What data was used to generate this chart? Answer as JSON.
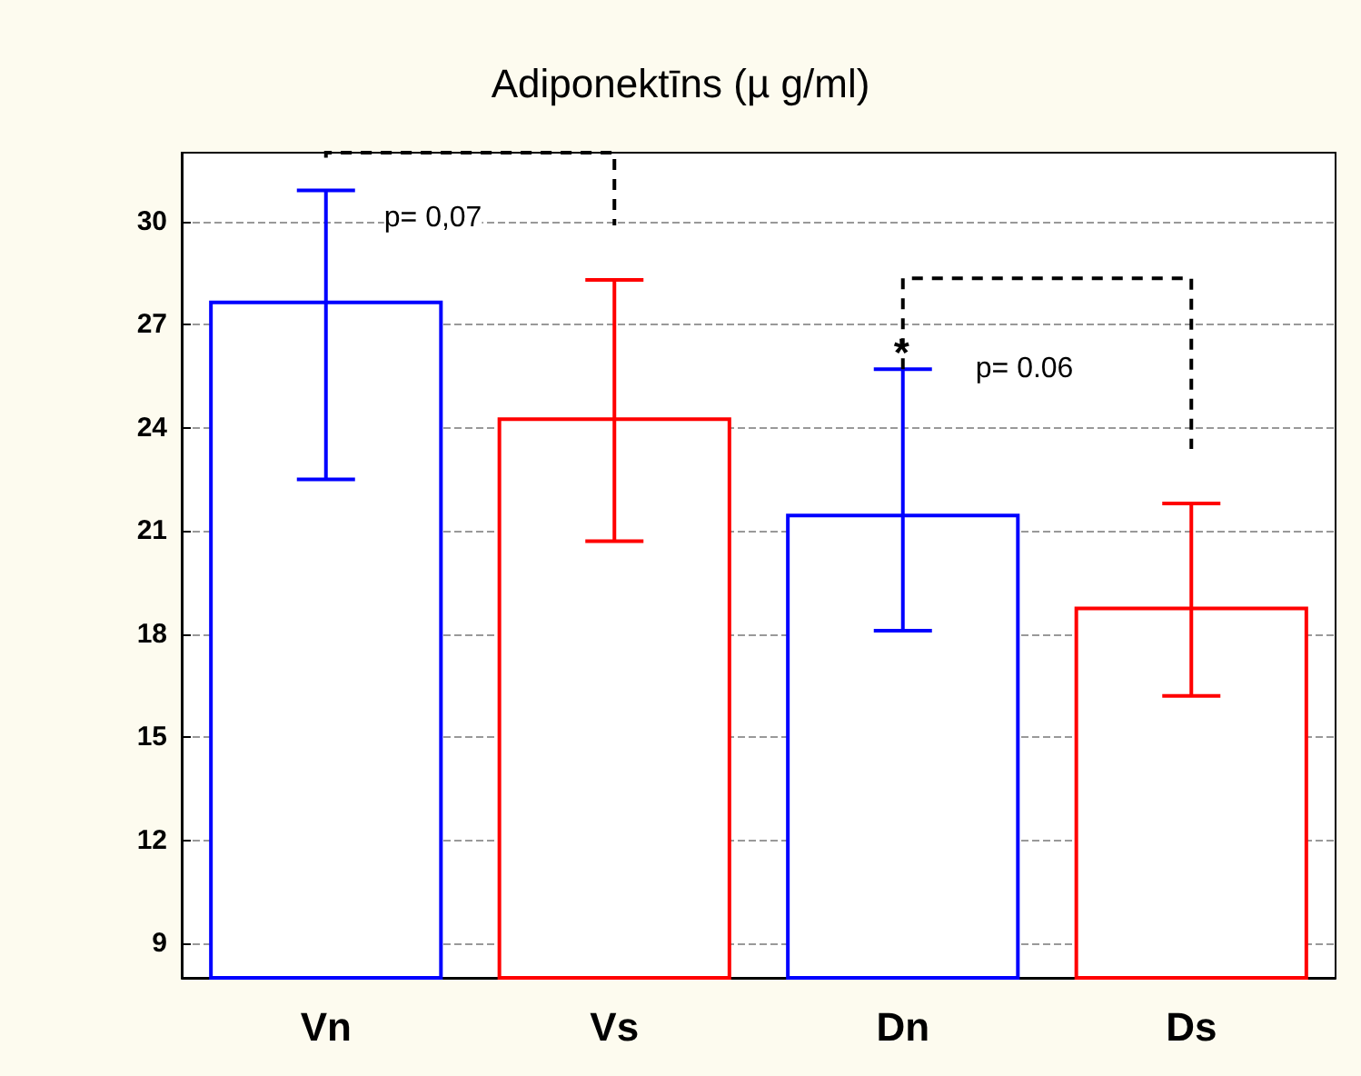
{
  "chart_data": {
    "type": "bar",
    "title": "Adiponektīns (µ g/ml)",
    "categories": [
      "Vn",
      "Vs",
      "Dn",
      "Ds"
    ],
    "values": [
      27.7,
      24.3,
      21.5,
      18.8
    ],
    "colors": [
      "#0000ff",
      "#ff0000",
      "#0000ff",
      "#ff0000"
    ],
    "errors": [
      [
        22.5,
        30.9
      ],
      [
        20.7,
        28.3
      ],
      [
        18.1,
        25.7
      ],
      [
        16.2,
        21.8
      ]
    ],
    "ylim": [
      8,
      32
    ],
    "yticks": [
      9,
      12,
      15,
      18,
      21,
      24,
      27,
      30
    ],
    "grid": "y",
    "annotations": [
      {
        "text": "p= 0,07",
        "x": "Vn",
        "y": 30.1
      },
      "*",
      {
        "text": "p= 0.06",
        "x": "Dn",
        "y": 25.7
      }
    ]
  }
}
